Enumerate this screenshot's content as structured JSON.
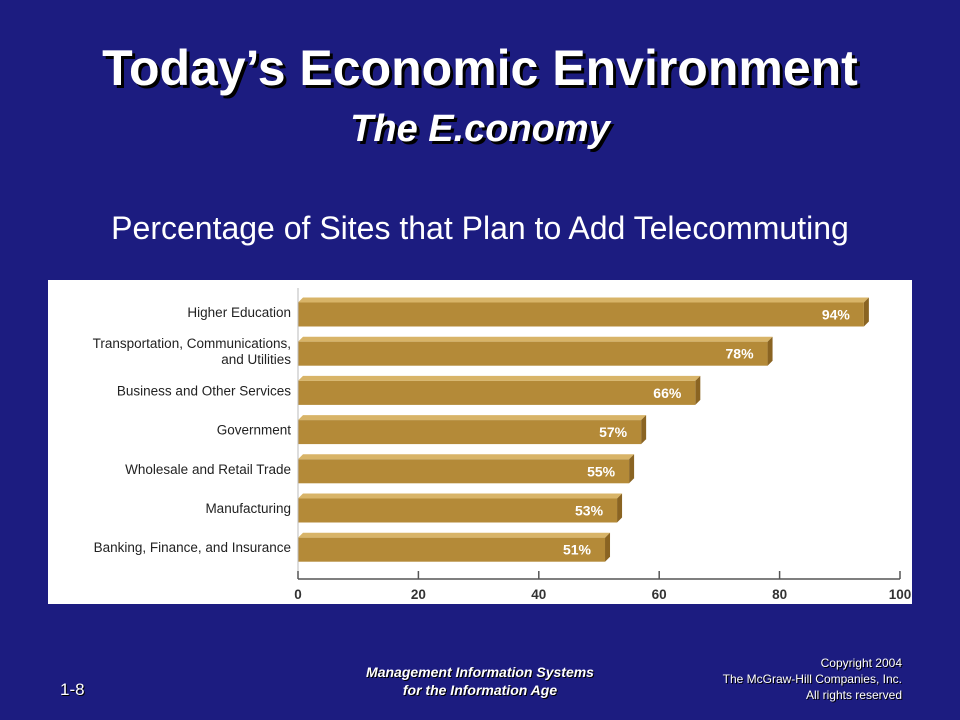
{
  "slide": {
    "title": "Today’s Economic Environment",
    "subtitle": "The E.conomy",
    "number": "1-8"
  },
  "footer": {
    "course_line1": "Management Information Systems",
    "course_line2": "for the Information Age",
    "copyright_line1": "Copyright 2004",
    "copyright_line2": "The McGraw-Hill  Companies, Inc.",
    "copyright_line3": "All rights reserved"
  },
  "colors": {
    "background": "#1c1c80",
    "bar_front": "#b48a38",
    "bar_top": "#d8b468",
    "bar_side": "#8a6422",
    "bar_label": "#ffffff"
  },
  "chart_data": {
    "type": "bar",
    "orientation": "horizontal",
    "title": "Percentage of Sites that Plan to Add Telecommuting",
    "categories": [
      [
        "Higher Education"
      ],
      [
        "Transportation, Communications,",
        "and Utilities"
      ],
      [
        "Business and Other Services"
      ],
      [
        "Government"
      ],
      [
        "Wholesale and Retail Trade"
      ],
      [
        "Manufacturing"
      ],
      [
        "Banking, Finance, and Insurance"
      ]
    ],
    "values": [
      94,
      78,
      66,
      57,
      55,
      53,
      51
    ],
    "value_labels": [
      "94%",
      "78%",
      "66%",
      "57%",
      "55%",
      "53%",
      "51%"
    ],
    "xlim": [
      0,
      100
    ],
    "xticks": [
      0,
      20,
      40,
      60,
      80,
      100
    ],
    "xtick_labels": [
      "0",
      "20",
      "40",
      "60",
      "80",
      "100"
    ],
    "grid": false,
    "legend": "none"
  }
}
